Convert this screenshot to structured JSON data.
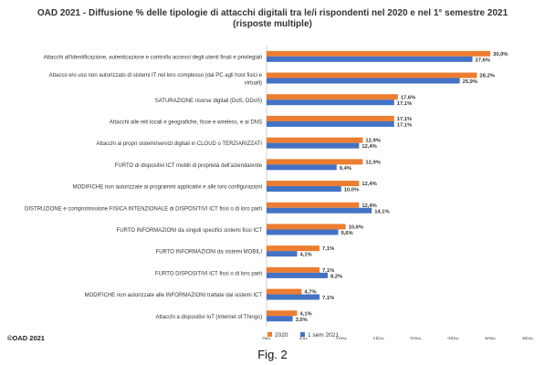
{
  "title_line1": "OAD 2021 - Diffusione % delle tipologie di attacchi digitali tra le/i rispondenti nel 2020 e nel 1° semestre 2021",
  "title_line2": "(risposte multiple)",
  "copyright": "©OAD 2021",
  "caption": "Fig. 2",
  "colors": {
    "s2020": "#ED7D31",
    "s2021": "#4472C4"
  },
  "chart_data": {
    "type": "bar",
    "orientation": "horizontal",
    "categories": [
      [
        "Attacchi all'identificazione, autenticazione e controllo accessi degli utenti finali e privilegiati"
      ],
      [
        "Attacco e/o uso non autorizzato di  sistemi IT  nel loro complesso (dal PC agli host fisici e",
        "virtuali)"
      ],
      [
        "SATURAZIONE risorse digitali (DoS, DDoS)"
      ],
      [
        "Attacchi alle reti locali e geografiche, fisse e wireless, e ai DNS"
      ],
      [
        "Attacchi ai propri sistemi/servizi digitali in CLOUD o TERZIARIZZATI"
      ],
      [
        "FURTO di dispositivi ICT mobili di proprietà dell'azienda/ente"
      ],
      [
        "MODIFICHE  non autorizzate ai programmi applicativi e alle loro configurazioni"
      ],
      [
        "DISTRUZIONE e compromissione FISICA INTENZIONALE  di DISPOSITIVI ICT fissi  o di loro parti"
      ],
      [
        "FURTO INFORMAZIONI da singoli specifici sistemi fissi ICT"
      ],
      [
        "FURTO INFORMAZIONI  da sistemi MOBILI"
      ],
      [
        "FURTO DISPOSITIVI ICT fissi o di loro parti"
      ],
      [
        "MODIFICHE non autorizzate alle INFORMAZIONI trattate dai sistemi ICT"
      ],
      [
        "Attacchi a dispositivi  IoT (Internet of Things)"
      ]
    ],
    "series": [
      {
        "name": "2020",
        "values": [
          30.0,
          28.2,
          17.6,
          17.1,
          12.9,
          12.9,
          12.4,
          12.4,
          10.6,
          7.1,
          7.1,
          4.7,
          4.1
        ],
        "labels": [
          "30,0%",
          "28,2%",
          "17,6%",
          "17,1%",
          "12,9%",
          "12,9%",
          "12,4%",
          "12,4%",
          "10,6%",
          "7,1%",
          "7,1%",
          "4,7%",
          "4,1%"
        ]
      },
      {
        "name": "1 sem 2021",
        "values": [
          27.6,
          25.9,
          17.1,
          17.1,
          12.4,
          9.4,
          10.0,
          14.1,
          9.6,
          4.1,
          8.2,
          7.1,
          3.5
        ],
        "labels": [
          "27,6%",
          "25,9%",
          "17,1%",
          "17,1%",
          "12,4%",
          "9,4%",
          "10,0%",
          "14,1%",
          "9,6%",
          "4,1%",
          "8,2%",
          "7,1%",
          "3,5%"
        ]
      }
    ],
    "xlim": [
      0,
      35
    ],
    "xticks": [
      "0%",
      "5%",
      "10%",
      "15%",
      "20%",
      "25%",
      "30%",
      "35%"
    ],
    "grid": false,
    "legend_position": "bottom"
  }
}
